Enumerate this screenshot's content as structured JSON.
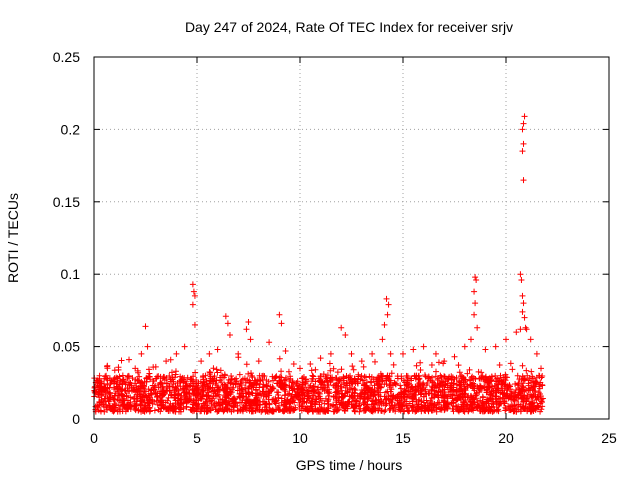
{
  "chart_data": {
    "type": "scatter",
    "title": "Day 247 of 2024, Rate Of TEC Index for receiver srjv",
    "xlabel": "GPS time / hours",
    "ylabel": "ROTI / TECUs",
    "xlim": [
      0,
      25
    ],
    "ylim": [
      0,
      0.25
    ],
    "xticks": [
      0,
      5,
      10,
      15,
      20,
      25
    ],
    "xtick_labels": [
      "0",
      "5",
      "10",
      "15",
      "20",
      "25"
    ],
    "yticks": [
      0,
      0.05,
      0.1,
      0.15,
      0.2,
      0.25
    ],
    "ytick_labels": [
      "0",
      "0.05",
      "0.1",
      "0.15",
      "0.2",
      "0.25"
    ],
    "grid": true,
    "marker": "+",
    "color": "#ff0000",
    "series": [
      {
        "name": "ROTI",
        "x_range": [
          0,
          21.8
        ],
        "baseline_range": [
          0.005,
          0.03
        ],
        "points": [
          [
            0.1,
            0.025
          ],
          [
            0.3,
            0.022
          ],
          [
            0.6,
            0.028
          ],
          [
            1.0,
            0.026
          ],
          [
            1.4,
            0.03
          ],
          [
            1.7,
            0.041
          ],
          [
            2.0,
            0.035
          ],
          [
            2.3,
            0.045
          ],
          [
            2.5,
            0.064
          ],
          [
            2.6,
            0.05
          ],
          [
            3.0,
            0.036
          ],
          [
            3.5,
            0.04
          ],
          [
            4.0,
            0.045
          ],
          [
            4.4,
            0.05
          ],
          [
            4.8,
            0.093
          ],
          [
            4.85,
            0.088
          ],
          [
            4.9,
            0.085
          ],
          [
            4.8,
            0.079
          ],
          [
            4.9,
            0.065
          ],
          [
            5.2,
            0.04
          ],
          [
            5.6,
            0.045
          ],
          [
            6.0,
            0.048
          ],
          [
            6.4,
            0.071
          ],
          [
            6.5,
            0.066
          ],
          [
            6.6,
            0.058
          ],
          [
            7.0,
            0.045
          ],
          [
            7.4,
            0.062
          ],
          [
            7.5,
            0.067
          ],
          [
            7.6,
            0.055
          ],
          [
            8.0,
            0.04
          ],
          [
            8.5,
            0.053
          ],
          [
            9.0,
            0.072
          ],
          [
            9.1,
            0.066
          ],
          [
            9.3,
            0.047
          ],
          [
            9.7,
            0.038
          ],
          [
            10.0,
            0.035
          ],
          [
            10.5,
            0.038
          ],
          [
            11.0,
            0.042
          ],
          [
            11.5,
            0.045
          ],
          [
            12.0,
            0.063
          ],
          [
            12.2,
            0.058
          ],
          [
            12.5,
            0.045
          ],
          [
            13.0,
            0.04
          ],
          [
            13.5,
            0.045
          ],
          [
            14.0,
            0.055
          ],
          [
            14.2,
            0.083
          ],
          [
            14.3,
            0.079
          ],
          [
            14.25,
            0.072
          ],
          [
            14.1,
            0.065
          ],
          [
            14.4,
            0.045
          ],
          [
            15.0,
            0.045
          ],
          [
            15.5,
            0.048
          ],
          [
            16.0,
            0.05
          ],
          [
            16.6,
            0.045
          ],
          [
            17.0,
            0.04
          ],
          [
            17.5,
            0.043
          ],
          [
            18.0,
            0.05
          ],
          [
            18.3,
            0.055
          ],
          [
            18.5,
            0.098
          ],
          [
            18.55,
            0.096
          ],
          [
            18.45,
            0.088
          ],
          [
            18.5,
            0.08
          ],
          [
            18.45,
            0.072
          ],
          [
            18.6,
            0.063
          ],
          [
            19.0,
            0.048
          ],
          [
            19.5,
            0.05
          ],
          [
            20.0,
            0.055
          ],
          [
            20.5,
            0.06
          ],
          [
            20.7,
            0.1
          ],
          [
            20.75,
            0.096
          ],
          [
            20.8,
            0.085
          ],
          [
            20.85,
            0.08
          ],
          [
            20.8,
            0.074
          ],
          [
            20.9,
            0.07
          ],
          [
            20.7,
            0.062
          ],
          [
            21.0,
            0.062
          ],
          [
            20.8,
            0.185
          ],
          [
            20.85,
            0.19
          ],
          [
            20.8,
            0.2
          ],
          [
            20.85,
            0.204
          ],
          [
            20.9,
            0.209
          ],
          [
            20.85,
            0.165
          ],
          [
            20.95,
            0.063
          ],
          [
            21.2,
            0.055
          ],
          [
            21.5,
            0.045
          ],
          [
            21.7,
            0.035
          ]
        ]
      }
    ]
  }
}
